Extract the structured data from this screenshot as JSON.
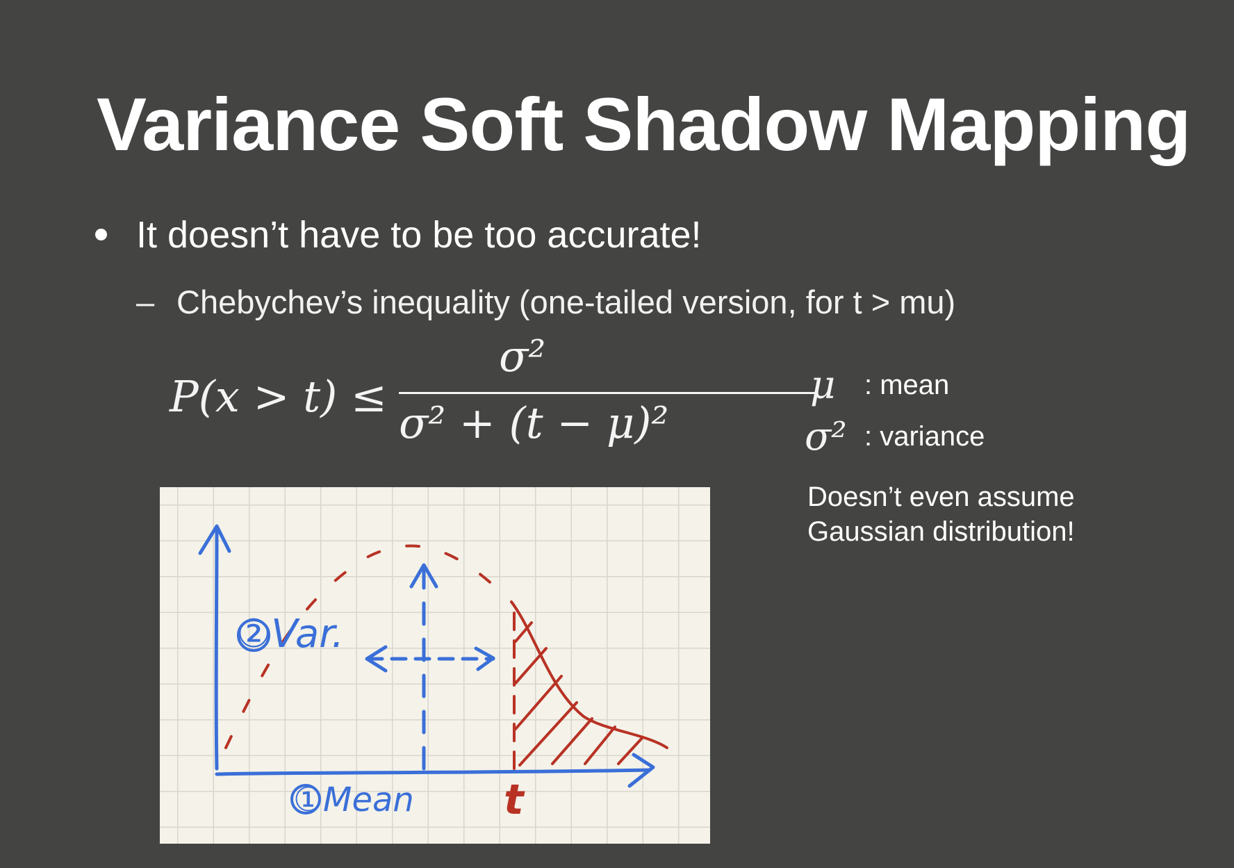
{
  "slide": {
    "title": "Variance Soft Shadow Mapping",
    "bullet": "It doesn’t have to be too accurate!",
    "sub_bullet_marker": "–",
    "sub_bullet": "Chebychev’s inequality (one-tailed version, for t > mu)"
  },
  "formula": {
    "lhs": "P(x > t) ≤",
    "numerator": "σ²",
    "denominator": "σ² + (t − μ)²"
  },
  "legend": [
    {
      "symbol": "μ",
      "text": ": mean"
    },
    {
      "symbol": "σ²",
      "text": ": variance"
    }
  ],
  "note": {
    "line1": "Doesn’t even assume",
    "line2": "Gaussian distribution!"
  },
  "sketch": {
    "label_mean": "①Mean",
    "label_var": "②Var.",
    "label_t": "t",
    "colors": {
      "blue": "#3a6fd8",
      "red": "#b83224",
      "paper": "#f4f2e9",
      "grid": "#d9d6cc"
    }
  }
}
